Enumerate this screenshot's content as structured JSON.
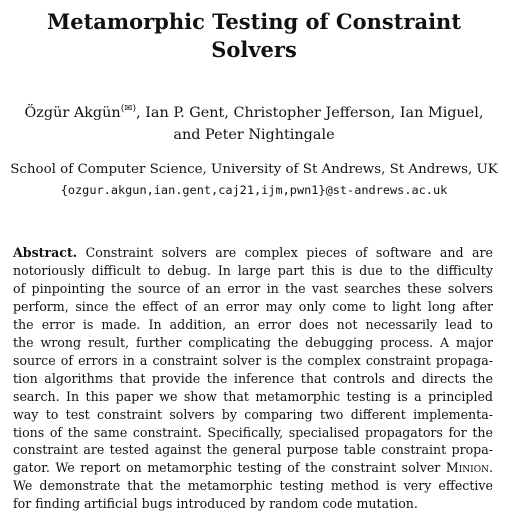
{
  "title": {
    "line1": "Metamorphic Testing of Constraint",
    "line2": "Solvers"
  },
  "authors": {
    "line1_name": "Özgür Akgün",
    "line1_mark": "(✉)",
    "line1_rest": ", Ian P. Gent, Christopher Jefferson, Ian Miguel,",
    "line2": "and Peter Nightingale"
  },
  "affiliation": {
    "institution": "School of Computer Science, University of St Andrews, St Andrews, UK",
    "emails": "{ozgur.akgun,ian.gent,caj21,ijm,pwn1}@st-andrews.ac.uk"
  },
  "abstract": {
    "heading": "Abstract.",
    "lines": [
      " Constraint solvers are complex pieces of software and are",
      "notoriously difficult to debug. In large part this is due to the difficulty",
      "of pinpointing the source of an error in the vast searches these solvers",
      "perform, since the effect of an error may only come to light long after",
      "the error is made. In addition, an error does not necessarily lead to",
      "the wrong result, further complicating the debugging process. A major",
      "source of errors in a constraint solver is the complex constraint propaga-",
      "tion algorithms that provide the inference that controls and directs the",
      "search. In this paper we show that metamorphic testing is a principled",
      "way to test constraint solvers by comparing two different implementa-",
      "tions of the same constraint. Specifically, specialised propagators for the",
      "constraint are tested against the general purpose table constraint propa-",
      "gator. We report on metamorphic testing of the constraint solver ",
      "We demonstrate that the metamorphic testing method is very effective",
      "for finding artificial bugs introduced by random code mutation."
    ],
    "solver_name": "Minion",
    "solver_suffix": "."
  }
}
